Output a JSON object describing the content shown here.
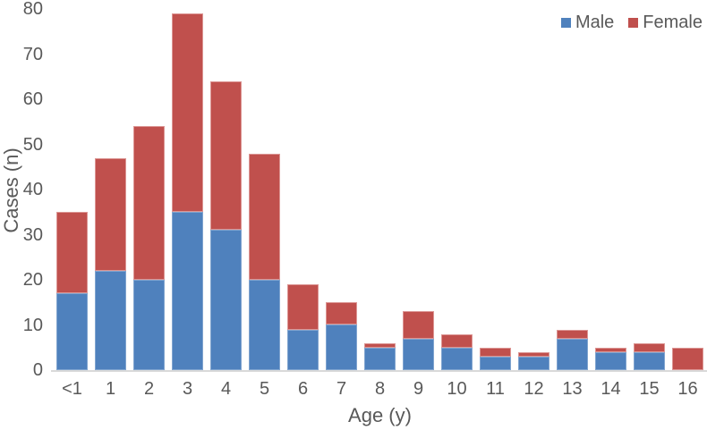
{
  "chart_data": {
    "type": "bar",
    "stacked": true,
    "title": "",
    "xlabel": "Age (y)",
    "ylabel": "Cases (n)",
    "ylim": [
      0,
      80
    ],
    "yticks": [
      0,
      10,
      20,
      30,
      40,
      50,
      60,
      70,
      80
    ],
    "grid": false,
    "legend_position": "top-right",
    "background_color": "#FFFFFF",
    "text_color": "#595959",
    "axis_line_color": "#D9D9D9",
    "categories": [
      "<1",
      "1",
      "2",
      "3",
      "4",
      "5",
      "6",
      "7",
      "8",
      "9",
      "10",
      "11",
      "12",
      "13",
      "14",
      "15",
      "16"
    ],
    "series": [
      {
        "name": "Male",
        "color": "#4F81BD",
        "values": [
          17,
          22,
          20,
          35,
          31,
          20,
          9,
          10,
          5,
          7,
          5,
          3,
          3,
          7,
          4,
          4,
          0
        ]
      },
      {
        "name": "Female",
        "color": "#C0504D",
        "values": [
          18,
          25,
          34,
          44,
          33,
          28,
          10,
          5,
          1,
          6,
          3,
          2,
          1,
          2,
          1,
          2,
          5
        ]
      }
    ],
    "totals": [
      35,
      47,
      54,
      79,
      64,
      48,
      19,
      15,
      6,
      13,
      8,
      5,
      4,
      9,
      5,
      6,
      5
    ]
  }
}
